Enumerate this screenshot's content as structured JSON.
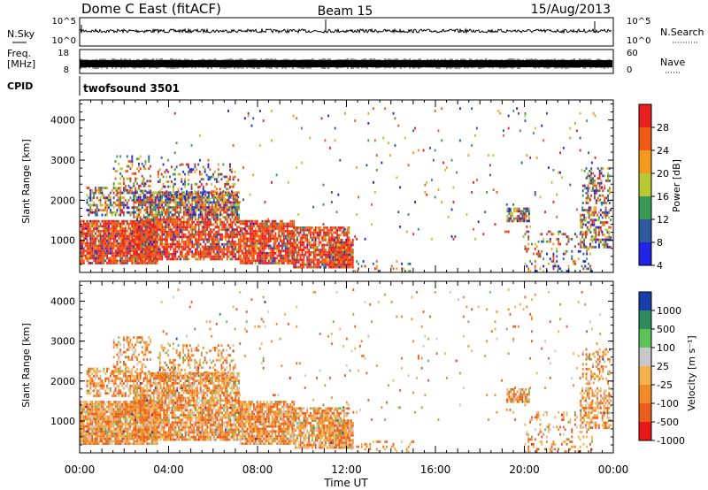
{
  "header": {
    "station": "Dome C East (fitACF)",
    "beam": "Beam 15",
    "date": "15/Aug/2013"
  },
  "noise_panel": {
    "left_label": "N.Sky",
    "right_label": "N.Search",
    "left_ticks": [
      "10^5",
      "10^0"
    ],
    "right_ticks": [
      "10^5",
      "10^0"
    ]
  },
  "freq_panel": {
    "left_label_1": "Freq.",
    "left_label_2": "[MHz]",
    "right_label": "Nave",
    "left_ticks": [
      "18",
      "8"
    ],
    "right_ticks": [
      "60",
      "0"
    ]
  },
  "cpid_panel": {
    "label": "CPID",
    "program": "twofsound 3501"
  },
  "chart_data": [
    {
      "type": "heatmap",
      "name": "power",
      "ylabel": "Slant Range [km]",
      "ylim": [
        200,
        4500
      ],
      "yticks": [
        1000,
        2000,
        3000,
        4000
      ],
      "colorbar_label": "Power [dB]",
      "colorbar_ticks": [
        "28",
        "24",
        "20",
        "16",
        "12",
        "8",
        "4"
      ],
      "colorbar_colors": [
        "#e82020",
        "#f05a14",
        "#f39a1e",
        "#b9c935",
        "#3a9a55",
        "#2e5aa0",
        "#1f24e6"
      ]
    },
    {
      "type": "heatmap",
      "name": "velocity",
      "ylabel": "Slant Range [km]",
      "ylim": [
        200,
        4500
      ],
      "yticks": [
        1000,
        2000,
        3000,
        4000
      ],
      "colorbar_label": "Velocity [m s⁻¹]",
      "colorbar_ticks": [
        "1000",
        "500",
        "100",
        "25",
        "-25",
        "-100",
        "-500",
        "-1000"
      ],
      "colorbar_colors": [
        "#1a3ea8",
        "#2f8a5c",
        "#5cc25a",
        "#c8c8c8",
        "#f3b24c",
        "#f08a2a",
        "#ea5d1c",
        "#e81818"
      ]
    }
  ],
  "time_axis": {
    "xlabel": "Time UT",
    "ticks": [
      "00:00",
      "04:00",
      "08:00",
      "12:00",
      "16:00",
      "20:00",
      "00:00"
    ]
  }
}
